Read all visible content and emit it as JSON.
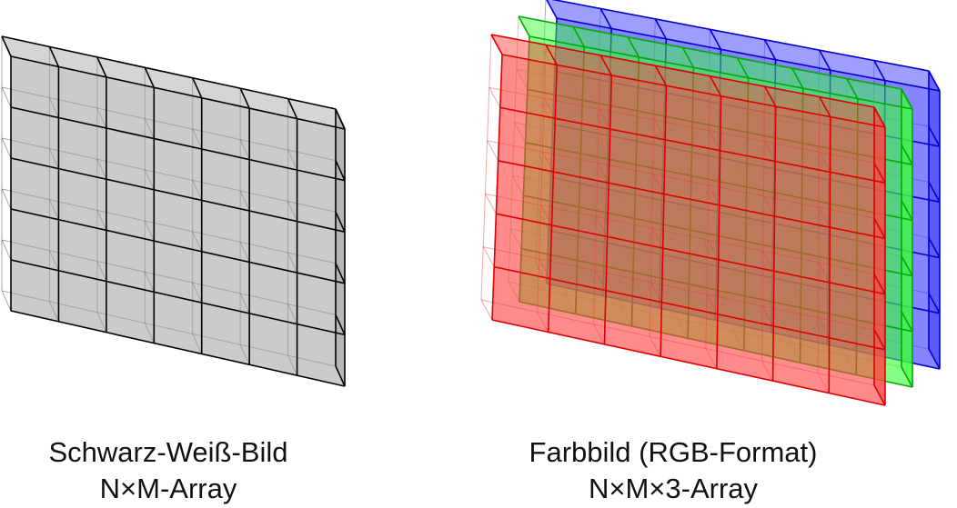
{
  "grayscale": {
    "title": "Schwarz-Weiß-Bild",
    "subtitle": "N×M-Array",
    "rows": 5,
    "cols": 7,
    "layers": 1,
    "colors": {
      "face": "#a0a0a0",
      "stroke": "#000000"
    }
  },
  "color": {
    "title": "Farbbild (RGB-Format)",
    "subtitle": "N×M×3-Array",
    "rows": 5,
    "cols": 7,
    "layers": 3,
    "channels": [
      {
        "channel": "B",
        "face": "#3a3aff",
        "stroke": "#0000cc"
      },
      {
        "channel": "G",
        "face": "#3cff3c",
        "stroke": "#00aa00"
      },
      {
        "channel": "R",
        "face": "#ff4444",
        "stroke": "#dd0000"
      }
    ]
  }
}
